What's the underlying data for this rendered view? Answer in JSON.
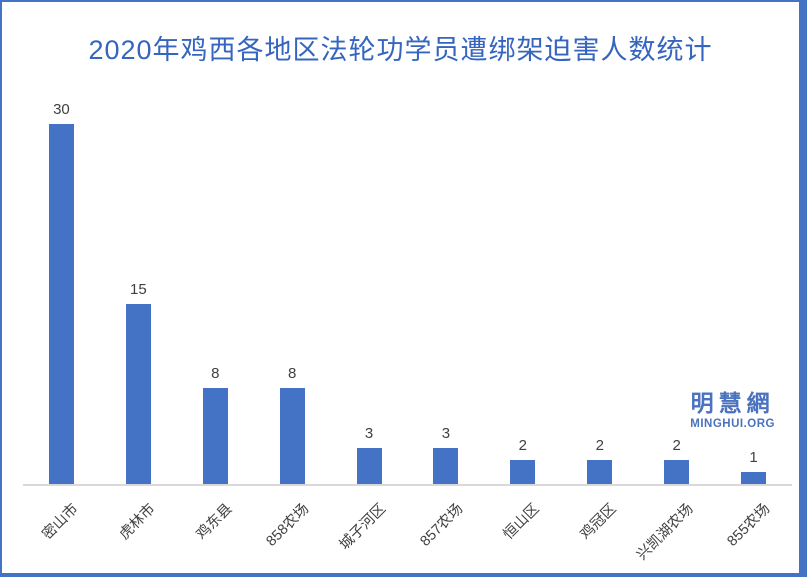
{
  "chart_data": {
    "type": "bar",
    "title": "2020年鸡西各地区法轮功学员遭绑架迫害人数统计",
    "categories": [
      "密山市",
      "虎林市",
      "鸡东县",
      "858农场",
      "城子河区",
      "857农场",
      "恒山区",
      "鸡冠区",
      "兴凯湖农场",
      "855农场"
    ],
    "values": [
      30,
      15,
      8,
      8,
      3,
      3,
      2,
      2,
      2,
      1
    ],
    "xlabel": "",
    "ylabel": "",
    "ylim": [
      0,
      31
    ],
    "grid": false,
    "legend": false,
    "data_labels": true,
    "x_tick_rotation": 45
  },
  "watermark": {
    "cn": "明慧網",
    "en": "MINGHUI.ORG"
  },
  "colors": {
    "background": "#FFFFFF",
    "frame_border": "#4472C4",
    "bar": "#4472C4",
    "title": "#3565BF",
    "axis_line": "#D9D9D9",
    "text": "#404040",
    "logo": "#4A72BF"
  }
}
